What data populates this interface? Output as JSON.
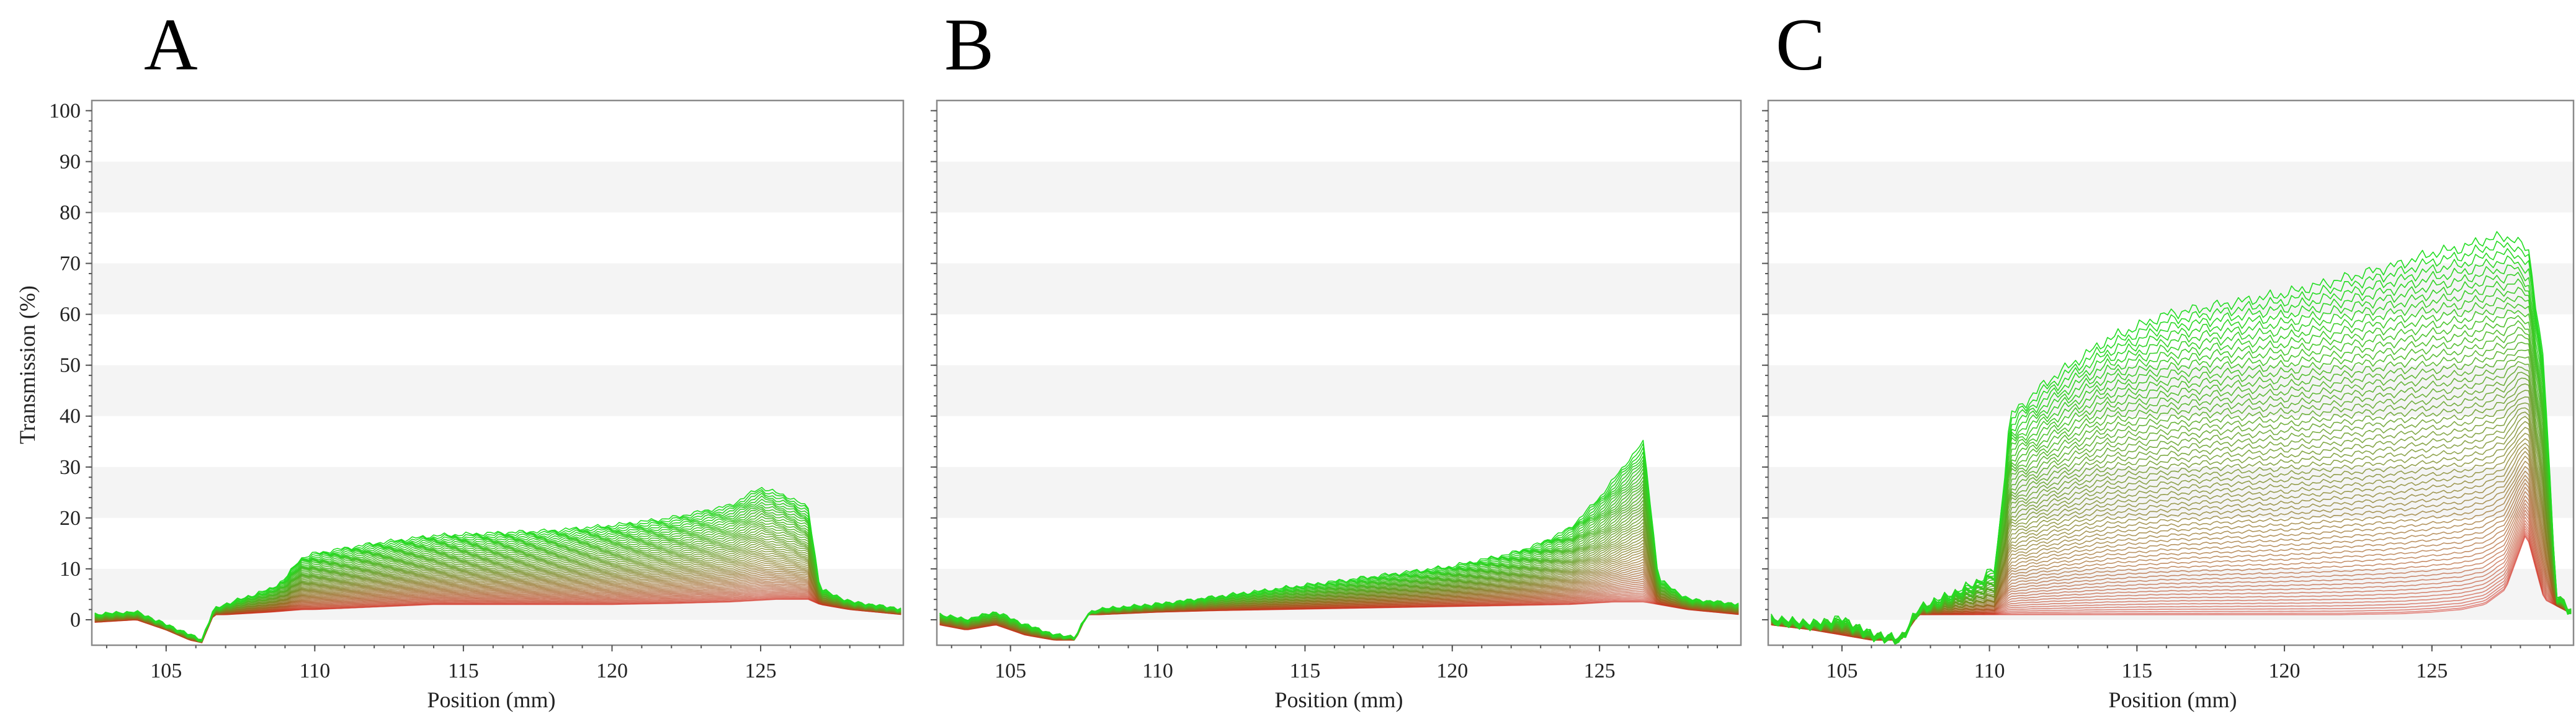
{
  "figure": {
    "shared_ylabel": "Transmission (%)"
  },
  "chart_data": [
    {
      "type": "line",
      "panel": "A",
      "xlabel": "Position (mm)",
      "ylabel": "Transmission (%)",
      "xlim": [
        102.5,
        129.8
      ],
      "ylim": [
        -5,
        102
      ],
      "xticks": [
        105,
        110,
        115,
        120,
        125
      ],
      "yticks": [
        0,
        10,
        20,
        30,
        40,
        50,
        60,
        70,
        80,
        90,
        100
      ],
      "grid": "alternating horizontal bands",
      "n_profiles": 60,
      "color_gradient": [
        "#d42a1e",
        "#22dd22"
      ],
      "first_profile": {
        "x": [
          102.6,
          104,
          105,
          105.8,
          106.2,
          106.6,
          107,
          108.5,
          109.6,
          110,
          112,
          114,
          116,
          118,
          120,
          122,
          124,
          125.5,
          126.6,
          127,
          128,
          129.8
        ],
        "y": [
          -0.5,
          0,
          -2,
          -4,
          -4.5,
          1,
          1,
          1.5,
          2,
          2,
          2.5,
          3,
          3,
          3,
          3,
          3.2,
          3.5,
          4,
          4,
          3,
          2,
          1
        ]
      },
      "last_profile": {
        "x": [
          102.6,
          104,
          105,
          105.8,
          106.2,
          106.6,
          107,
          108.5,
          109,
          109.5,
          110,
          112,
          114,
          116,
          118,
          120,
          122,
          124,
          125,
          126,
          126.6,
          127,
          128,
          129.8
        ],
        "y": [
          1,
          1.5,
          -1,
          -3,
          -4,
          2,
          3,
          6,
          8,
          12,
          13,
          15,
          16.5,
          17,
          17.5,
          18.5,
          20,
          22.5,
          26,
          24,
          22,
          6,
          3.5,
          2
        ]
      }
    },
    {
      "type": "line",
      "panel": "B",
      "xlabel": "Position (mm)",
      "ylabel": "",
      "xlim": [
        102.5,
        129.8
      ],
      "ylim": [
        -5,
        102
      ],
      "xticks": [
        105,
        110,
        115,
        120,
        125
      ],
      "yticks": [
        0,
        10,
        20,
        30,
        40,
        50,
        60,
        70,
        80,
        90,
        100
      ],
      "grid": "alternating horizontal bands",
      "n_profiles": 60,
      "color_gradient": [
        "#d42a1e",
        "#22dd22"
      ],
      "first_profile": {
        "x": [
          102.6,
          103.5,
          104.5,
          105.5,
          106.5,
          107.2,
          107.6,
          108,
          110,
          112,
          114,
          116,
          118,
          120,
          122,
          124,
          125.5,
          126.5,
          127,
          128,
          129.8
        ],
        "y": [
          -1,
          -2,
          -1,
          -3,
          -4,
          -4,
          1,
          1,
          1.5,
          1.8,
          2,
          2.2,
          2.4,
          2.6,
          2.8,
          3,
          3.5,
          3.5,
          3,
          2,
          1
        ]
      },
      "last_profile": {
        "x": [
          102.6,
          103.5,
          104.5,
          105.5,
          106.5,
          107.2,
          107.6,
          108,
          110,
          112,
          114,
          116,
          118,
          120,
          122,
          123,
          124,
          125,
          125.8,
          126.5,
          127,
          128,
          129.8
        ],
        "y": [
          1,
          0,
          1.5,
          -1,
          -3,
          -3.5,
          1,
          2,
          3,
          4.5,
          6,
          7.5,
          9,
          10.5,
          13,
          15,
          18,
          24,
          30,
          35,
          8,
          4,
          3
        ]
      }
    },
    {
      "type": "line",
      "panel": "C",
      "xlabel": "Position (mm)",
      "ylabel": "",
      "xlim": [
        102.5,
        129.8
      ],
      "ylim": [
        -5,
        102
      ],
      "xticks": [
        105,
        110,
        115,
        120,
        125
      ],
      "yticks": [
        0,
        10,
        20,
        30,
        40,
        50,
        60,
        70,
        80,
        90,
        100
      ],
      "grid": "alternating horizontal bands",
      "n_profiles": 60,
      "color_gradient": [
        "#d42a1e",
        "#22dd22"
      ],
      "first_profile": {
        "x": [
          102.6,
          104,
          105,
          106,
          107,
          107.6,
          108,
          110,
          112,
          114,
          116,
          118,
          120,
          122,
          124,
          125,
          126,
          126.8,
          127.5,
          128.2,
          128.8,
          129.8
        ],
        "y": [
          -1,
          -2,
          -3,
          -4,
          -4,
          1,
          1,
          1,
          1,
          1,
          1,
          1,
          1,
          1,
          1.2,
          1.5,
          2,
          3,
          6,
          17,
          4,
          1
        ]
      },
      "last_profile": {
        "x": [
          102.6,
          104,
          105,
          106,
          107,
          107.6,
          108,
          109.5,
          110.2,
          110.7,
          112,
          114,
          116,
          118,
          120,
          122,
          124,
          125,
          126,
          127,
          127.8,
          128.3,
          128.8,
          129.2,
          129.8
        ],
        "y": [
          0,
          -1,
          0,
          -3,
          -4,
          2,
          3,
          7,
          10,
          40,
          47,
          55,
          60,
          62,
          64,
          67,
          70,
          72,
          73,
          75,
          75,
          72,
          50,
          5,
          1
        ]
      }
    }
  ],
  "panels": [
    {
      "letter": "A",
      "xlabel": "Position (mm)"
    },
    {
      "letter": "B",
      "xlabel": "Position (mm)"
    },
    {
      "letter": "C",
      "xlabel": "Position (mm)"
    }
  ],
  "colors": {
    "low": "#d42a1e",
    "high": "#22dd22",
    "frame": "#8a8a8a",
    "band": "#f4f4f4"
  }
}
